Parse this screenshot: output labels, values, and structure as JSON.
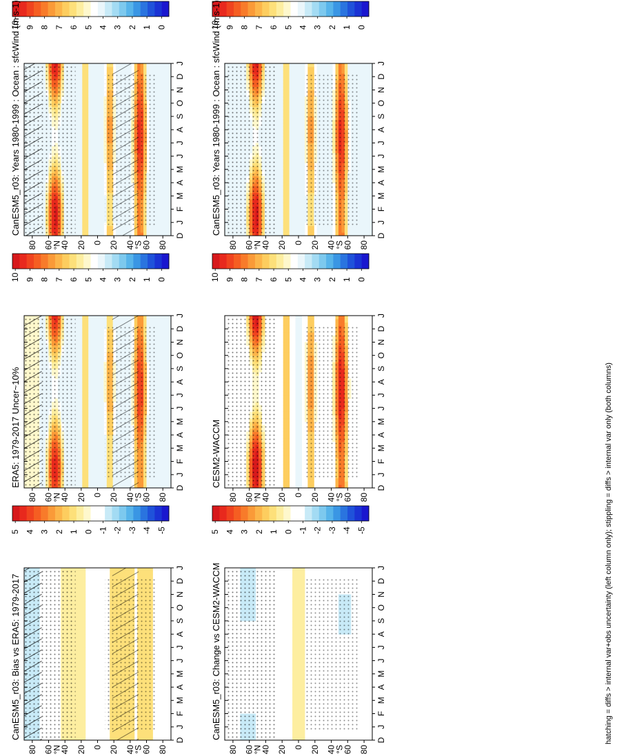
{
  "footer": "hatching = diffs > internal var+obs uncertainty (left column only); stippling = diffs > internal var only (both columns)",
  "colorbars": {
    "absolute": {
      "labels": [
        "10",
        "9",
        "8",
        "7",
        "6",
        "5",
        "4",
        "3",
        "2",
        "1",
        "0"
      ],
      "colors": [
        "#d7191c",
        "#e8291d",
        "#f0431f",
        "#f55e22",
        "#f87b2a",
        "#fa9a38",
        "#fcb54a",
        "#fdcd5f",
        "#fde07a",
        "#fdeea0",
        "#fef8cc",
        "#ffffff",
        "#eaf6fb",
        "#c8eaf7",
        "#a3dbf3",
        "#7dc9ee",
        "#57b4ea",
        "#3a96e4",
        "#2a74df",
        "#1f52da",
        "#1a33d4",
        "#1a17cf"
      ]
    },
    "difference": {
      "labels": [
        "5",
        "4",
        "3",
        "2",
        "1",
        "0",
        "-1",
        "-2",
        "-3",
        "-4",
        "-5"
      ],
      "colors": [
        "#d7191c",
        "#e8291d",
        "#f0431f",
        "#f55e22",
        "#f87b2a",
        "#fa9a38",
        "#fcb54a",
        "#fdcd5f",
        "#fde07a",
        "#fdeea0",
        "#fef8cc",
        "#ffffff",
        "#ffffff",
        "#c8eaf7",
        "#a3dbf3",
        "#7dc9ee",
        "#57b4ea",
        "#3a96e4",
        "#2a74df",
        "#1f52da",
        "#1a33d4",
        "#1a17cf"
      ]
    }
  },
  "chart_data": [
    {
      "type": "heatmap",
      "kind": "absolute",
      "title": "CanESM5_r03: Years 1980-1999 : Ocean : sfcWind (m s-1)",
      "months": [
        "D",
        "J",
        "F",
        "M",
        "A",
        "M",
        "J",
        "J",
        "A",
        "S",
        "O",
        "N",
        "D",
        "J"
      ],
      "lat_ticks": [
        "80",
        "60",
        "40",
        "20",
        "0",
        "20",
        "40",
        "60",
        "80"
      ],
      "lat_ticks_values": [
        80,
        60,
        40,
        20,
        0,
        -20,
        -40,
        -60,
        -80
      ],
      "lat_unit_labels": {
        "north": "°N",
        "south": "°S"
      },
      "lat_range": [
        -90,
        90
      ],
      "hatching": true,
      "stippling": true,
      "colorbar": "absolute",
      "colorbar_range": [
        0,
        10
      ]
    },
    {
      "type": "heatmap",
      "kind": "absolute",
      "title": "CanESM5_r03: Years 1980-1999 : Ocean : sfcWind (m s-1)",
      "months": [
        "D",
        "J",
        "F",
        "M",
        "A",
        "M",
        "J",
        "J",
        "A",
        "S",
        "O",
        "N",
        "D",
        "J"
      ],
      "lat_ticks": [
        "80",
        "60",
        "40",
        "20",
        "0",
        "20",
        "40",
        "60",
        "80"
      ],
      "lat_ticks_values": [
        80,
        60,
        40,
        20,
        0,
        -20,
        -40,
        -60,
        -80
      ],
      "lat_unit_labels": {
        "north": "°N",
        "south": "°S"
      },
      "lat_range": [
        -90,
        90
      ],
      "hatching": false,
      "stippling": true,
      "colorbar": "absolute",
      "colorbar_range": [
        0,
        10
      ]
    },
    {
      "type": "heatmap",
      "kind": "absolute",
      "title": "ERA5: 1979-2017 Uncer~10%",
      "months": [
        "D",
        "J",
        "F",
        "M",
        "A",
        "M",
        "J",
        "J",
        "A",
        "S",
        "O",
        "N",
        "D",
        "J"
      ],
      "lat_ticks": [
        "80",
        "60",
        "40",
        "20",
        "0",
        "20",
        "40",
        "60",
        "80"
      ],
      "lat_ticks_values": [
        80,
        60,
        40,
        20,
        0,
        -20,
        -40,
        -60,
        -80
      ],
      "lat_unit_labels": {
        "north": "°N",
        "south": "°S"
      },
      "lat_range": [
        -90,
        90
      ],
      "hatching": true,
      "stippling": true,
      "colorbar": "absolute",
      "colorbar_range": [
        0,
        10
      ]
    },
    {
      "type": "heatmap",
      "kind": "absolute",
      "title": "CESM2-WACCM",
      "months": [
        "D",
        "J",
        "F",
        "M",
        "A",
        "M",
        "J",
        "J",
        "A",
        "S",
        "O",
        "N",
        "D",
        "J"
      ],
      "lat_ticks": [
        "80",
        "60",
        "40",
        "20",
        "0",
        "20",
        "40",
        "60",
        "80"
      ],
      "lat_ticks_values": [
        80,
        60,
        40,
        20,
        0,
        -20,
        -40,
        -60,
        -80
      ],
      "lat_unit_labels": {
        "north": "°N",
        "south": "°S"
      },
      "lat_range": [
        -90,
        90
      ],
      "hatching": false,
      "stippling": true,
      "colorbar": "absolute",
      "colorbar_range": [
        0,
        10
      ]
    },
    {
      "type": "heatmap",
      "kind": "difference",
      "title": "CanESM5_r03: Bias vs ERA5: 1979-2017",
      "months": [
        "D",
        "J",
        "F",
        "M",
        "A",
        "M",
        "J",
        "J",
        "A",
        "S",
        "O",
        "N",
        "D",
        "J"
      ],
      "lat_ticks": [
        "80",
        "60",
        "40",
        "20",
        "0",
        "20",
        "40",
        "60",
        "80"
      ],
      "lat_ticks_values": [
        80,
        60,
        40,
        20,
        0,
        -20,
        -40,
        -60,
        -80
      ],
      "lat_unit_labels": {
        "north": "°N",
        "south": "°S"
      },
      "lat_range": [
        -90,
        90
      ],
      "hatching": true,
      "stippling": true,
      "colorbar": "difference",
      "colorbar_range": [
        -5,
        5
      ]
    },
    {
      "type": "heatmap",
      "kind": "difference",
      "title": "CanESM5_r03: Change vs CESM2-WACCM",
      "months": [
        "D",
        "J",
        "F",
        "M",
        "A",
        "M",
        "J",
        "J",
        "A",
        "S",
        "O",
        "N",
        "D",
        "J"
      ],
      "lat_ticks": [
        "80",
        "60",
        "40",
        "20",
        "0",
        "20",
        "40",
        "60",
        "80"
      ],
      "lat_ticks_values": [
        80,
        60,
        40,
        20,
        0,
        -20,
        -40,
        -60,
        -80
      ],
      "lat_unit_labels": {
        "north": "°N",
        "south": "°S"
      },
      "lat_range": [
        -90,
        90
      ],
      "hatching": false,
      "stippling": true,
      "colorbar": "difference",
      "colorbar_range": [
        -5,
        5
      ]
    }
  ]
}
